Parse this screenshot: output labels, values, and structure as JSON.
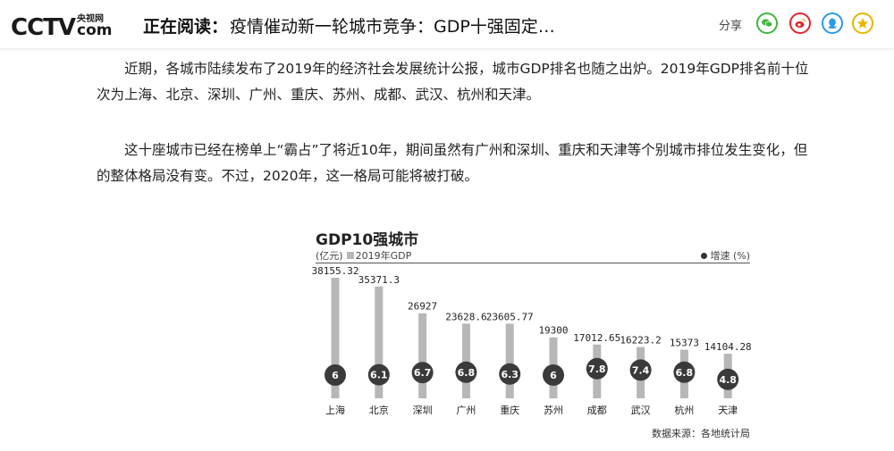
{
  "header": {
    "logo_main": "CCTV",
    "logo_sub": "央视网",
    "logo_com": "com",
    "reading_label": "正在阅读：",
    "reading_title": "疫情催动新一轮城市竞争：GDP十强固定…",
    "share_label": "分享",
    "share_icons": [
      "wechat-icon",
      "weibo-icon",
      "qq-icon",
      "favorite-icon"
    ]
  },
  "article": {
    "p1_line1": "近期，各城市陆续发布了2019年的经济社会发展统计公报，城市GDP排名也随之出炉。2019年GDP排名前十位",
    "p1_line2": "次为上海、北京、深圳、广州、重庆、苏州、成都、武汉、杭州和天津。",
    "p2_line1": "这十座城市已经在榜单上“霸占”了将近10年，期间虽然有广州和深圳、重庆和天津等个别城市排位发生变化，但",
    "p2_line2": "的整体格局没有变。不过，2020年，这一格局可能将被打破。"
  },
  "chart_data": {
    "type": "bar",
    "title": "GDP10强城市",
    "unit": "(亿元)",
    "legend_bar": "2019年GDP",
    "legend_dot": "增速 (%)",
    "source": "数据来源：各地统计局",
    "categories": [
      "上海",
      "北京",
      "深圳",
      "广州",
      "重庆",
      "苏州",
      "成都",
      "武汉",
      "杭州",
      "天津"
    ],
    "series": [
      {
        "name": "2019年GDP",
        "values": [
          38155.32,
          35371.3,
          26927,
          23628.6,
          23605.77,
          19300,
          17012.65,
          16223.2,
          15373,
          14104.28
        ]
      },
      {
        "name": "增速 (%)",
        "values": [
          6,
          6.1,
          6.7,
          6.8,
          6.3,
          6,
          7.8,
          7.4,
          6.8,
          4.8
        ]
      }
    ],
    "value_labels": [
      "38155.32",
      "35371.3",
      "26927",
      "23628.6",
      "23605.77",
      "19300",
      "17012.65",
      "16223.2",
      "15373",
      "14104.28"
    ],
    "growth_labels": [
      "6",
      "6.1",
      "6.7",
      "6.8",
      "6.3",
      "6",
      "7.8",
      "7.4",
      "6.8",
      "4.8"
    ],
    "colors": {
      "bar": "#b7b7b7",
      "dot": "#3a3a3a",
      "dot_text": "#ffffff"
    }
  }
}
